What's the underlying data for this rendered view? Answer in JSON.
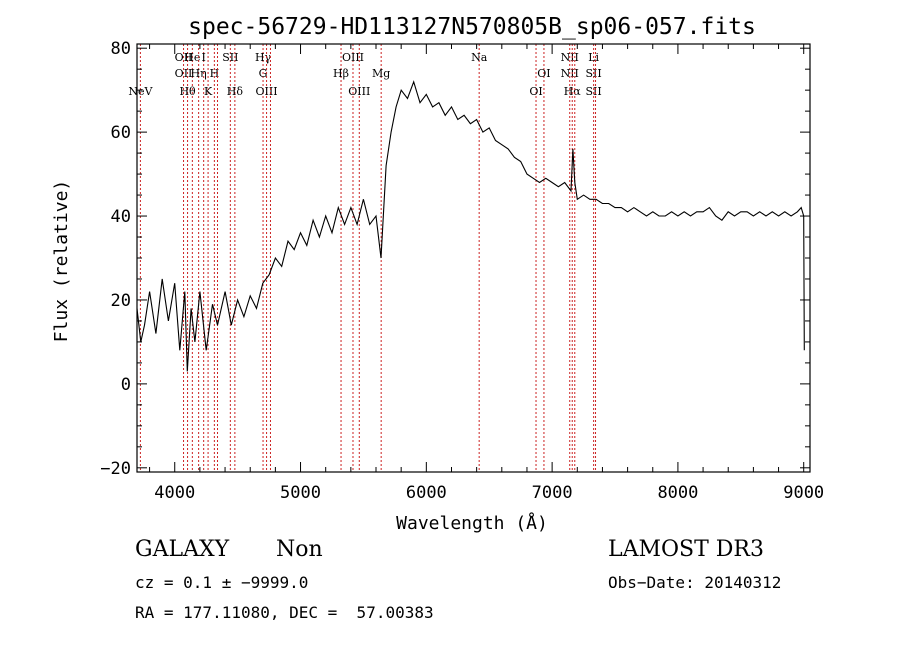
{
  "chart_data": {
    "type": "line",
    "title": "spec-56729-HD113127N570805B_sp06-057.fits",
    "xlabel": "Wavelength (Å)",
    "ylabel": "Flux (relative)",
    "xlim": [
      3700,
      9050
    ],
    "ylim": [
      -21,
      81
    ],
    "xticks": [
      4000,
      5000,
      6000,
      7000,
      8000,
      9000
    ],
    "xtick_labels": [
      "4000",
      "5000",
      "6000",
      "7000",
      "8000",
      "9000"
    ],
    "yticks": [
      -20,
      0,
      20,
      40,
      60,
      80
    ],
    "ytick_labels": [
      "−20",
      "0",
      "20",
      "40",
      "60",
      "80"
    ],
    "grid": false,
    "line_color": "#000000",
    "marker_color": "#cc2222",
    "series": [
      {
        "x": [
          3700,
          3730,
          3760,
          3800,
          3850,
          3900,
          3950,
          4000,
          4040,
          4080,
          4100,
          4130,
          4160,
          4200,
          4250,
          4300,
          4340,
          4400,
          4450,
          4500,
          4550,
          4600,
          4650,
          4700,
          4750,
          4800,
          4850,
          4900,
          4950,
          5000,
          5050,
          5100,
          5150,
          5200,
          5250,
          5300,
          5350,
          5400,
          5450,
          5500,
          5550,
          5600,
          5640,
          5680,
          5720,
          5760,
          5800,
          5850,
          5900,
          5950,
          6000,
          6050,
          6100,
          6150,
          6200,
          6250,
          6300,
          6350,
          6400,
          6450,
          6500,
          6550,
          6600,
          6650,
          6700,
          6750,
          6800,
          6850,
          6900,
          6950,
          7000,
          7050,
          7100,
          7150,
          7165,
          7180,
          7200,
          7250,
          7300,
          7350,
          7400,
          7450,
          7500,
          7550,
          7600,
          7650,
          7700,
          7750,
          7800,
          7850,
          7900,
          7950,
          8000,
          8050,
          8100,
          8150,
          8200,
          8250,
          8300,
          8350,
          8400,
          8450,
          8500,
          8550,
          8600,
          8650,
          8700,
          8750,
          8800,
          8850,
          8900,
          8950,
          8980,
          9000,
          9005
        ],
        "y": [
          18,
          10,
          14,
          22,
          12,
          25,
          15,
          24,
          8,
          22,
          3,
          18,
          10,
          22,
          8,
          19,
          14,
          22,
          14,
          20,
          16,
          21,
          18,
          24,
          26,
          30,
          28,
          34,
          32,
          36,
          33,
          39,
          35,
          40,
          36,
          42,
          38,
          42,
          38,
          44,
          38,
          40,
          30,
          52,
          60,
          66,
          70,
          68,
          72,
          67,
          69,
          66,
          67,
          64,
          66,
          63,
          64,
          62,
          63,
          60,
          61,
          58,
          57,
          56,
          54,
          53,
          50,
          49,
          48,
          49,
          48,
          47,
          48,
          46,
          56,
          48,
          44,
          45,
          44,
          44,
          43,
          43,
          42,
          42,
          41,
          42,
          41,
          40,
          41,
          40,
          40,
          41,
          40,
          41,
          40,
          41,
          41,
          42,
          40,
          39,
          41,
          40,
          41,
          41,
          40,
          41,
          40,
          41,
          40,
          41,
          40,
          41,
          42,
          40,
          8
        ]
      }
    ],
    "lines": [
      {
        "x": 3727,
        "labels": [
          {
            "text": "NeV",
            "row": 2
          }
        ]
      },
      {
        "x": 4070,
        "labels": [
          {
            "text": "OII",
            "row": 0
          },
          {
            "text": "OII",
            "row": 1
          }
        ]
      },
      {
        "x": 4102,
        "labels": [
          {
            "text": "Hθ",
            "row": 2
          }
        ]
      },
      {
        "x": 4140,
        "labels": [
          {
            "text": "He",
            "row": 0
          }
        ]
      },
      {
        "x": 4190,
        "labels": [
          {
            "text": "Hη",
            "row": 1
          }
        ]
      },
      {
        "x": 4230,
        "labels": [
          {
            "text": "I",
            "row": 0
          }
        ]
      },
      {
        "x": 4265,
        "labels": [
          {
            "text": "K",
            "row": 2
          }
        ]
      },
      {
        "x": 4315,
        "labels": [
          {
            "text": "H",
            "row": 1
          }
        ]
      },
      {
        "x": 4340,
        "labels": [
          {
            "text": "",
            "row": 0
          }
        ]
      },
      {
        "x": 4442,
        "labels": [
          {
            "text": "SII",
            "row": 0
          }
        ]
      },
      {
        "x": 4478,
        "labels": [
          {
            "text": "Hδ",
            "row": 2
          }
        ]
      },
      {
        "x": 4702,
        "labels": [
          {
            "text": "Hγ",
            "row": 0
          },
          {
            "text": "G",
            "row": 1
          }
        ]
      },
      {
        "x": 4730,
        "labels": [
          {
            "text": "OIII",
            "row": 2
          }
        ]
      },
      {
        "x": 4761,
        "labels": [
          {
            "text": "",
            "row": 0
          }
        ]
      },
      {
        "x": 5322,
        "labels": [
          {
            "text": "Hβ",
            "row": 1
          }
        ]
      },
      {
        "x": 5417,
        "labels": [
          {
            "text": "OIII",
            "row": 0
          }
        ]
      },
      {
        "x": 5467,
        "labels": [
          {
            "text": "OIII",
            "row": 2
          }
        ]
      },
      {
        "x": 5641,
        "labels": [
          {
            "text": "Mg",
            "row": 1
          }
        ]
      },
      {
        "x": 6420,
        "labels": [
          {
            "text": "Na",
            "row": 0
          }
        ]
      },
      {
        "x": 6872,
        "labels": [
          {
            "text": "OI",
            "row": 2
          }
        ]
      },
      {
        "x": 6935,
        "labels": [
          {
            "text": "OI",
            "row": 1
          }
        ]
      },
      {
        "x": 7140,
        "labels": [
          {
            "text": "NII",
            "row": 0
          },
          {
            "text": "NII",
            "row": 1
          }
        ]
      },
      {
        "x": 7160,
        "labels": [
          {
            "text": "Hα",
            "row": 2
          }
        ]
      },
      {
        "x": 7180,
        "labels": [
          {
            "text": "",
            "row": 0
          }
        ]
      },
      {
        "x": 7330,
        "labels": [
          {
            "text": "Li",
            "row": 0
          },
          {
            "text": "SII",
            "row": 1
          },
          {
            "text": "SII",
            "row": 2
          }
        ]
      },
      {
        "x": 7345,
        "labels": [
          {
            "text": "",
            "row": 0
          }
        ]
      }
    ]
  },
  "info": {
    "class": "GALAXY",
    "subclass": "Non",
    "survey": "LAMOST DR3",
    "cz_line": "cz = 0.1 ± −9999.0",
    "obs_date_line": "Obs−Date: 20140312",
    "radec_line": "RA = 177.11080, DEC =  57.00383"
  }
}
